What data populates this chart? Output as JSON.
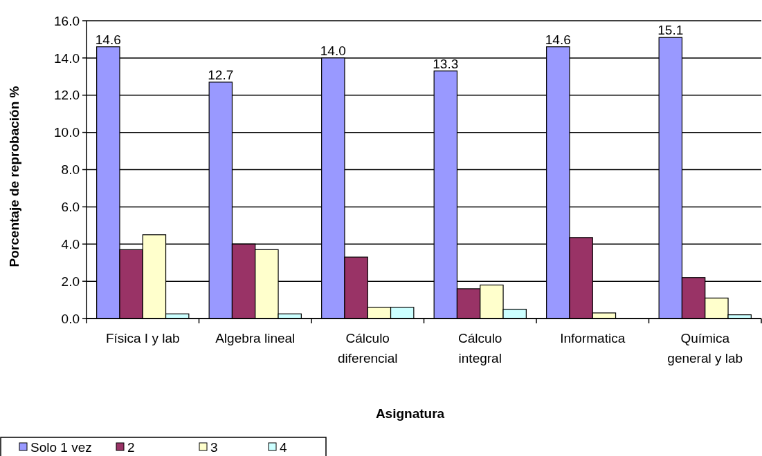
{
  "chart_data": {
    "type": "bar",
    "xlabel": "Asignatura",
    "ylabel": "Porcentaje de reprobación %",
    "categories": [
      "Física I y lab",
      "Algebra lineal",
      "Cálculo diferencial",
      "Cálculo integral",
      "Informatica",
      "Química general y lab"
    ],
    "series": [
      {
        "name": "Solo 1 vez",
        "color": "#9999ff",
        "values": [
          14.6,
          12.7,
          14.0,
          13.3,
          14.6,
          15.1
        ],
        "value_labels": [
          "14.6",
          "12.7",
          "14.0",
          "13.3",
          "14.6",
          "15.1"
        ]
      },
      {
        "name": "2",
        "color": "#993366",
        "values": [
          3.7,
          4.0,
          3.3,
          1.6,
          4.35,
          2.2
        ]
      },
      {
        "name": "3",
        "color": "#ffffcc",
        "values": [
          4.5,
          3.7,
          0.6,
          1.8,
          0.3,
          1.1
        ]
      },
      {
        "name": "4",
        "color": "#ccffff",
        "values": [
          0.25,
          0.25,
          0.6,
          0.5,
          0,
          0.2
        ]
      }
    ],
    "ylim": [
      0,
      16
    ],
    "yticks": [
      {
        "value": 0,
        "label": "0.0"
      },
      {
        "value": 2,
        "label": "2.0"
      },
      {
        "value": 4,
        "label": "4.0"
      },
      {
        "value": 6,
        "label": "6.0"
      },
      {
        "value": 8,
        "label": "8.0"
      },
      {
        "value": 10,
        "label": "10.0"
      },
      {
        "value": 12,
        "label": "12.0"
      },
      {
        "value": 14,
        "label": "14.0"
      },
      {
        "value": 16,
        "label": "16.0"
      }
    ],
    "grid": "y",
    "legend": "bottom left"
  }
}
